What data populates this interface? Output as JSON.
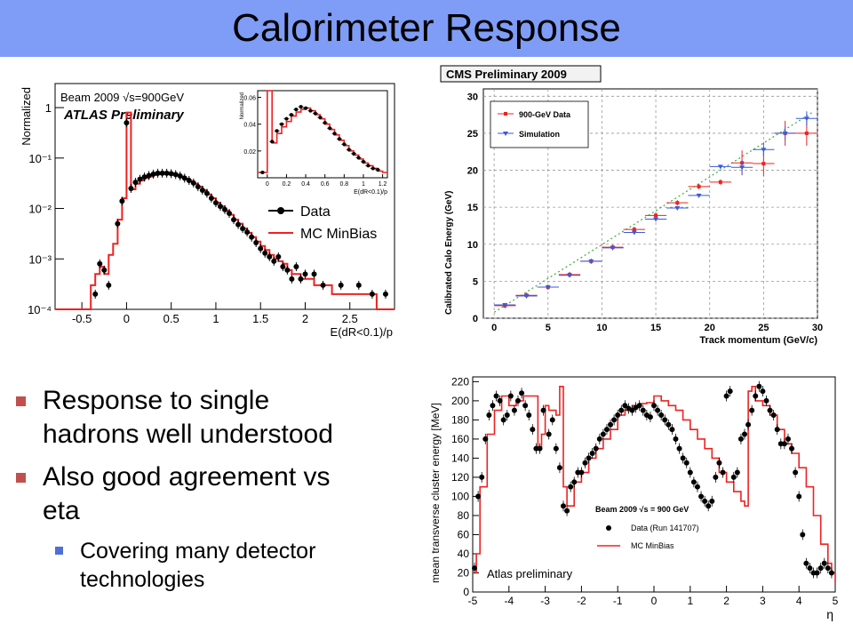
{
  "slide": {
    "title": "Calorimeter Response",
    "bullets": [
      {
        "text": "Response to single hadrons well understood",
        "lines": [
          "Response to single",
          "hadrons well understood"
        ]
      },
      {
        "text": "Also good agreement vs eta",
        "lines": [
          "Also good agreement vs",
          "eta"
        ]
      }
    ],
    "subbullets": [
      {
        "text": "Covering many detector technologies",
        "lines": [
          "Covering many detector",
          "technologies"
        ]
      }
    ]
  },
  "colors": {
    "title_bar": "#7f9cf7",
    "bullet": "#c0504d",
    "subbullet": "#4f6fd6",
    "mc_red": "#ee2222",
    "sim_blue": "#3b5bd6"
  },
  "chart_data": [
    {
      "type": "line",
      "title": "Beam 2009 √s=900GeV",
      "subtitle": "ATLAS Preliminary",
      "xlabel": "E(dR<0.1)/p",
      "ylabel": "Normalized",
      "xlim": [
        -0.8,
        3.0
      ],
      "ylim": [
        0.0001,
        3
      ],
      "yscale": "log",
      "xticks": [
        "-0.5",
        "0",
        "0.5",
        "1",
        "1.5",
        "2",
        "2.5"
      ],
      "xtick_values": [
        -0.5,
        0,
        0.5,
        1,
        1.5,
        2,
        2.5
      ],
      "yticks": [
        "1",
        "10⁻¹",
        "10⁻²",
        "10⁻³",
        "10⁻⁴"
      ],
      "ytick_values": [
        1,
        0.1,
        0.01,
        0.001,
        0.0001
      ],
      "legend_position": "right",
      "series": [
        {
          "name": "Data",
          "x": [
            -0.35,
            -0.3,
            -0.25,
            -0.2,
            -0.1,
            -0.05,
            0.0,
            0.05,
            0.1,
            0.15,
            0.2,
            0.25,
            0.3,
            0.35,
            0.4,
            0.45,
            0.5,
            0.55,
            0.6,
            0.65,
            0.7,
            0.75,
            0.8,
            0.85,
            0.9,
            0.95,
            1.0,
            1.05,
            1.1,
            1.15,
            1.2,
            1.25,
            1.3,
            1.35,
            1.4,
            1.45,
            1.5,
            1.55,
            1.6,
            1.65,
            1.7,
            1.75,
            1.8,
            1.85,
            1.9,
            1.95,
            2.0,
            2.1,
            2.2,
            2.4,
            2.6,
            2.75,
            2.9
          ],
          "y": [
            0.0002,
            0.0008,
            0.0006,
            0.0003,
            0.005,
            0.014,
            0.5,
            0.025,
            0.033,
            0.038,
            0.042,
            0.045,
            0.048,
            0.05,
            0.05,
            0.05,
            0.049,
            0.047,
            0.044,
            0.04,
            0.036,
            0.032,
            0.027,
            0.023,
            0.02,
            0.016,
            0.013,
            0.011,
            0.0095,
            0.008,
            0.006,
            0.0048,
            0.004,
            0.0034,
            0.0027,
            0.0021,
            0.0016,
            0.0013,
            0.0011,
            0.0009,
            0.0011,
            0.0007,
            0.0006,
            0.0004,
            0.0007,
            0.0004,
            0.0005,
            0.0005,
            0.0003,
            0.0003,
            0.0003,
            0.0002,
            0.0002
          ]
        },
        {
          "name": "MC MinBias",
          "x": [
            -0.8,
            -0.4,
            -0.35,
            -0.3,
            -0.25,
            -0.2,
            -0.15,
            -0.1,
            -0.05,
            0.0,
            0.05,
            0.1,
            0.15,
            0.2,
            0.25,
            0.3,
            0.35,
            0.4,
            0.45,
            0.5,
            0.55,
            0.6,
            0.65,
            0.7,
            0.75,
            0.8,
            0.85,
            0.9,
            0.95,
            1.0,
            1.05,
            1.1,
            1.15,
            1.2,
            1.25,
            1.3,
            1.35,
            1.4,
            1.45,
            1.5,
            1.55,
            1.6,
            1.65,
            1.7,
            1.75,
            1.8,
            1.85,
            1.9,
            1.95,
            2.0,
            2.1,
            2.2,
            2.3,
            2.4,
            2.6,
            2.8,
            3.0
          ],
          "y": [
            0.0001,
            0.0003,
            0.0005,
            0.0007,
            0.0005,
            0.0012,
            0.002,
            0.006,
            0.016,
            0.8,
            0.024,
            0.031,
            0.036,
            0.04,
            0.043,
            0.046,
            0.048,
            0.049,
            0.049,
            0.048,
            0.046,
            0.043,
            0.039,
            0.035,
            0.031,
            0.027,
            0.023,
            0.019,
            0.016,
            0.013,
            0.011,
            0.009,
            0.0075,
            0.006,
            0.005,
            0.004,
            0.0033,
            0.0027,
            0.0022,
            0.0018,
            0.0015,
            0.0012,
            0.001,
            0.0009,
            0.0008,
            0.0006,
            0.0005,
            0.0005,
            0.0004,
            0.0004,
            0.0003,
            0.0003,
            0.0002,
            0.0002,
            0.0002,
            0.0001,
            0.0001
          ]
        }
      ],
      "inset": {
        "xlabel": "E(dR<0.1)/p",
        "ylabel": "Normalized",
        "xlim": [
          -0.1,
          1.25
        ],
        "ylim": [
          0,
          0.065
        ],
        "xticks": [
          "0",
          "0.2",
          "0.4",
          "0.6",
          "0.8",
          "1",
          "1.2"
        ],
        "xtick_values": [
          0,
          0.2,
          0.4,
          0.6,
          0.8,
          1,
          1.2
        ],
        "yticks": [
          "0.02",
          "0.04",
          "0.06"
        ],
        "ytick_values": [
          0.02,
          0.04,
          0.06
        ],
        "data_x": [
          -0.05,
          0.05,
          0.1,
          0.15,
          0.2,
          0.25,
          0.3,
          0.35,
          0.4,
          0.45,
          0.5,
          0.55,
          0.6,
          0.65,
          0.7,
          0.75,
          0.8,
          0.85,
          0.9,
          0.95,
          1.0,
          1.05,
          1.1,
          1.15
        ],
        "data_y": [
          0.004,
          0.027,
          0.035,
          0.04,
          0.044,
          0.047,
          0.051,
          0.053,
          0.052,
          0.05,
          0.048,
          0.045,
          0.041,
          0.037,
          0.033,
          0.029,
          0.025,
          0.021,
          0.018,
          0.015,
          0.012,
          0.009,
          0.007,
          0.006
        ],
        "mc_x": [
          -0.1,
          0.0,
          0.05,
          0.1,
          0.15,
          0.2,
          0.25,
          0.3,
          0.35,
          0.4,
          0.45,
          0.5,
          0.55,
          0.6,
          0.65,
          0.7,
          0.75,
          0.8,
          0.85,
          0.9,
          0.95,
          1.0,
          1.05,
          1.1,
          1.15,
          1.2
        ],
        "mc_y": [
          0.004,
          0.065,
          0.026,
          0.033,
          0.038,
          0.042,
          0.046,
          0.049,
          0.051,
          0.052,
          0.05,
          0.047,
          0.044,
          0.04,
          0.036,
          0.032,
          0.028,
          0.024,
          0.02,
          0.017,
          0.014,
          0.011,
          0.009,
          0.007,
          0.005,
          0.004
        ]
      }
    },
    {
      "type": "scatter",
      "title": "CMS Preliminary 2009",
      "xlabel": "Track momentum (GeV/c)",
      "ylabel": "Calibrated Calo Energy (GeV)",
      "xlim": [
        -1,
        30
      ],
      "ylim": [
        0,
        31
      ],
      "xticks": [
        "0",
        "5",
        "10",
        "15",
        "20",
        "25",
        "30"
      ],
      "xtick_values": [
        0,
        5,
        10,
        15,
        20,
        25,
        30
      ],
      "yticks": [
        "0",
        "5",
        "10",
        "15",
        "20",
        "25",
        "30"
      ],
      "ytick_values": [
        0,
        5,
        10,
        15,
        20,
        25,
        30
      ],
      "grid": true,
      "legend_position": "top-left",
      "series": [
        {
          "name": "900-GeV Data",
          "x": [
            1,
            3,
            5,
            7,
            9,
            11,
            13,
            15,
            17,
            19,
            21,
            23,
            25,
            27,
            29
          ],
          "y": [
            1.7,
            3.1,
            4.2,
            5.9,
            7.7,
            9.6,
            12.0,
            13.9,
            15.6,
            17.8,
            18.4,
            21.0,
            20.9,
            25.0,
            25.0
          ]
        },
        {
          "name": "Simulation",
          "x": [
            1,
            3,
            5,
            7,
            9,
            11,
            13,
            15,
            17,
            19,
            21,
            23,
            25,
            27,
            29
          ],
          "y": [
            1.8,
            3.0,
            4.2,
            5.8,
            7.7,
            9.5,
            11.6,
            13.4,
            14.9,
            16.6,
            20.5,
            20.4,
            22.8,
            25.0,
            27.0
          ]
        }
      ]
    },
    {
      "type": "scatter",
      "xlabel": "η",
      "ylabel": "mean transverse cluster energy [MeV]",
      "xlim": [
        -5,
        5
      ],
      "ylim": [
        0,
        225
      ],
      "xticks": [
        "-5",
        "-4",
        "-3",
        "-2",
        "-1",
        "0",
        "1",
        "2",
        "3",
        "4",
        "5"
      ],
      "xtick_values": [
        -5,
        -4,
        -3,
        -2,
        -1,
        0,
        1,
        2,
        3,
        4,
        5
      ],
      "yticks": [
        "0",
        "20",
        "40",
        "60",
        "80",
        "100",
        "120",
        "140",
        "160",
        "180",
        "200",
        "220"
      ],
      "ytick_values": [
        0,
        20,
        40,
        60,
        80,
        100,
        120,
        140,
        160,
        180,
        200,
        220
      ],
      "annotations": [
        "Beam 2009 √s = 900 GeV",
        "Atlas preliminary"
      ],
      "legend_position": "bottom-center",
      "series": [
        {
          "name": "Data (Run 141707)",
          "x": [
            -4.95,
            -4.85,
            -4.75,
            -4.65,
            -4.55,
            -4.45,
            -4.35,
            -4.25,
            -4.15,
            -4.05,
            -3.95,
            -3.85,
            -3.75,
            -3.65,
            -3.55,
            -3.45,
            -3.35,
            -3.25,
            -3.15,
            -3.05,
            -2.9,
            -2.8,
            -2.7,
            -2.6,
            -2.5,
            -2.4,
            -2.3,
            -2.2,
            -2.1,
            -2.0,
            -1.9,
            -1.8,
            -1.7,
            -1.6,
            -1.5,
            -1.4,
            -1.3,
            -1.2,
            -1.1,
            -1.0,
            -0.9,
            -0.8,
            -0.7,
            -0.6,
            -0.5,
            -0.4,
            -0.3,
            -0.2,
            -0.1,
            0.0,
            0.1,
            0.2,
            0.3,
            0.4,
            0.5,
            0.6,
            0.7,
            0.8,
            0.9,
            1.0,
            1.1,
            1.2,
            1.3,
            1.4,
            1.5,
            1.6,
            1.7,
            1.8,
            1.9,
            2.0,
            2.1,
            2.2,
            2.3,
            2.4,
            2.5,
            2.6,
            2.7,
            2.8,
            2.9,
            3.0,
            3.1,
            3.2,
            3.3,
            3.4,
            3.5,
            3.6,
            3.7,
            3.8,
            3.9,
            4.0,
            4.1,
            4.2,
            4.3,
            4.4,
            4.5,
            4.6,
            4.7,
            4.8,
            4.9
          ],
          "y": [
            25,
            100,
            120,
            160,
            185,
            195,
            205,
            200,
            180,
            185,
            205,
            190,
            200,
            208,
            195,
            185,
            170,
            150,
            150,
            190,
            165,
            180,
            150,
            130,
            90,
            85,
            110,
            115,
            125,
            125,
            135,
            140,
            145,
            150,
            160,
            165,
            170,
            175,
            180,
            185,
            190,
            195,
            192,
            190,
            193,
            195,
            190,
            185,
            183,
            195,
            190,
            185,
            180,
            175,
            170,
            160,
            150,
            140,
            135,
            125,
            115,
            110,
            100,
            95,
            90,
            95,
            120,
            135,
            125,
            205,
            210,
            120,
            125,
            160,
            165,
            175,
            190,
            205,
            215,
            210,
            200,
            190,
            185,
            170,
            155,
            155,
            160,
            150,
            125,
            100,
            60,
            30,
            25,
            20,
            20,
            25,
            30,
            25,
            20
          ]
        },
        {
          "name": "MC MinBias",
          "x": [
            -5.0,
            -4.9,
            -4.8,
            -4.6,
            -4.4,
            -4.2,
            -4.0,
            -3.8,
            -3.6,
            -3.4,
            -3.2,
            -3.1,
            -3.0,
            -2.9,
            -2.7,
            -2.6,
            -2.5,
            -2.4,
            -2.2,
            -2.0,
            -1.8,
            -1.6,
            -1.4,
            -1.2,
            -1.0,
            -0.8,
            -0.6,
            -0.4,
            -0.2,
            0.0,
            0.2,
            0.4,
            0.6,
            0.8,
            1.0,
            1.2,
            1.4,
            1.6,
            1.8,
            2.0,
            2.2,
            2.4,
            2.5,
            2.6,
            2.7,
            2.8,
            3.0,
            3.2,
            3.4,
            3.6,
            3.8,
            4.0,
            4.2,
            4.4,
            4.6,
            4.8,
            4.9,
            5.0
          ],
          "y": [
            20,
            40,
            110,
            165,
            190,
            205,
            195,
            200,
            205,
            205,
            150,
            165,
            195,
            190,
            185,
            215,
            110,
            90,
            115,
            125,
            140,
            150,
            160,
            170,
            185,
            190,
            195,
            197,
            198,
            205,
            200,
            195,
            190,
            180,
            170,
            160,
            150,
            140,
            125,
            115,
            105,
            95,
            90,
            210,
            215,
            200,
            195,
            185,
            170,
            155,
            145,
            130,
            110,
            80,
            50,
            30,
            20,
            10
          ]
        }
      ]
    }
  ]
}
